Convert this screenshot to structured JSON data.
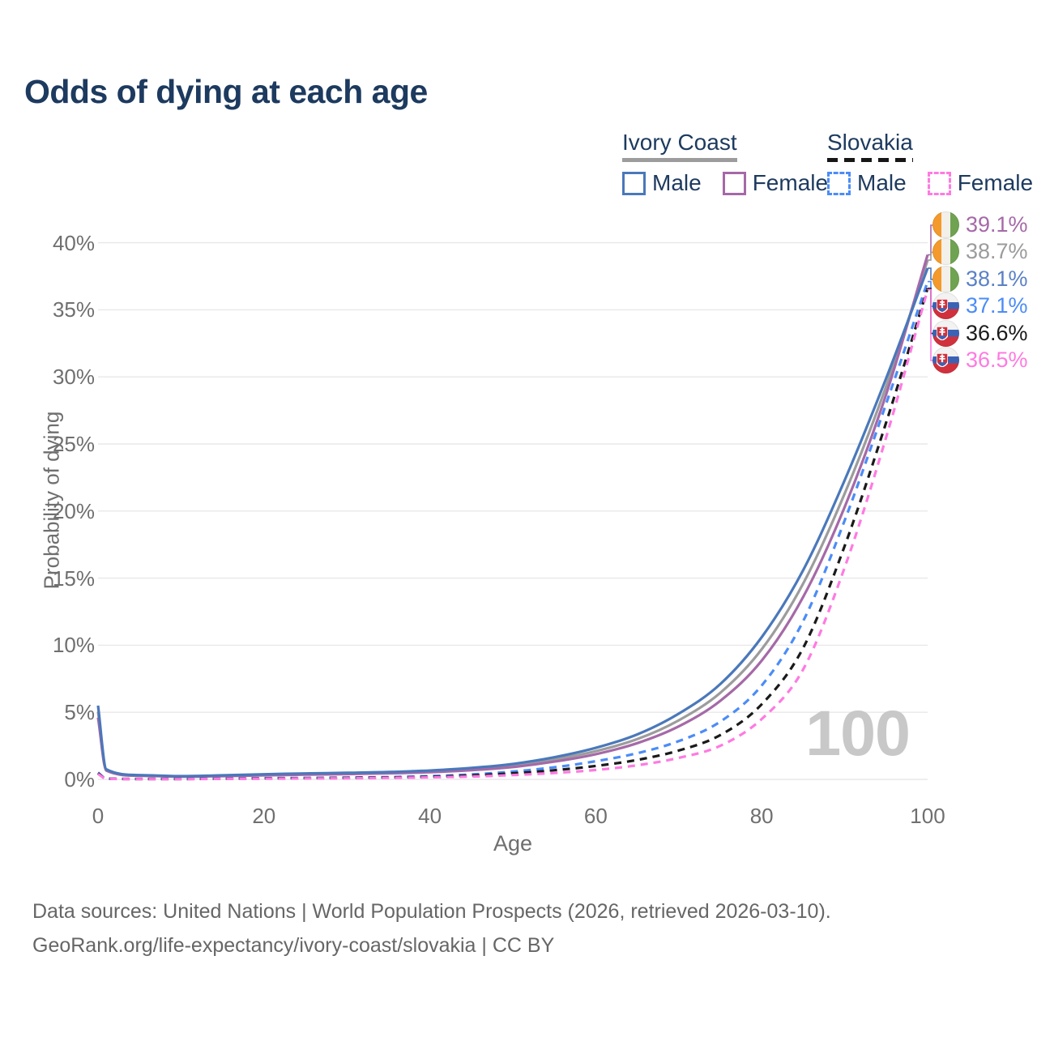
{
  "header": {
    "title": "Odds of dying at each age"
  },
  "legend": {
    "groups": [
      {
        "name": "Ivory Coast",
        "line_style": "solid",
        "underline_color": "#9c9c9c",
        "items": [
          {
            "label": "Male",
            "color": "#4a78ba",
            "dashed": false
          },
          {
            "label": "Female",
            "color": "#a569a8",
            "dashed": false
          }
        ]
      },
      {
        "name": "Slovakia",
        "line_style": "dashed",
        "underline_color": "#161616",
        "items": [
          {
            "label": "Male",
            "color": "#4b8cf7",
            "dashed": true
          },
          {
            "label": "Female",
            "color": "#ff7ae1",
            "dashed": true
          }
        ]
      }
    ]
  },
  "chart_data": {
    "type": "line",
    "title": "Odds of dying at each age",
    "xlabel": "Age",
    "ylabel": "Probability of dying",
    "xlim": [
      0,
      100
    ],
    "ylim": [
      0,
      40
    ],
    "grid": "horizontal",
    "xticks": [
      0,
      20,
      40,
      60,
      80,
      100
    ],
    "yticks": [
      {
        "label": "0%",
        "value": 0
      },
      {
        "label": "5%",
        "value": 5
      },
      {
        "label": "10%",
        "value": 10
      },
      {
        "label": "15%",
        "value": 15
      },
      {
        "label": "20%",
        "value": 20
      },
      {
        "label": "25%",
        "value": 25
      },
      {
        "label": "30%",
        "value": 30
      },
      {
        "label": "35%",
        "value": 35
      },
      {
        "label": "40%",
        "value": 40
      }
    ],
    "age_indicator": "100",
    "ages": [
      0,
      1,
      5,
      10,
      15,
      20,
      25,
      30,
      35,
      40,
      45,
      50,
      55,
      60,
      65,
      70,
      75,
      80,
      85,
      90,
      95,
      100
    ],
    "series": [
      {
        "name": "Ivory Coast Both sexes",
        "country": "Ivory Coast",
        "sex": "Both",
        "color": "#9c9c9c",
        "dashed": false,
        "flag": "civ",
        "end_label": "38.7%",
        "end_label_color": "#9b9b9b",
        "values": [
          5.05,
          0.7,
          0.29,
          0.22,
          0.27,
          0.34,
          0.39,
          0.44,
          0.5,
          0.59,
          0.76,
          1.03,
          1.48,
          2.1,
          3.0,
          4.4,
          6.45,
          9.7,
          14.6,
          21.3,
          29.3,
          38.7
        ]
      },
      {
        "name": "Ivory Coast Female",
        "country": "Ivory Coast",
        "sex": "Female",
        "color": "#a569a8",
        "dashed": false,
        "flag": "civ",
        "end_label": "39.1%",
        "end_label_color": "#a569a8",
        "values": [
          4.6,
          0.65,
          0.27,
          0.2,
          0.24,
          0.3,
          0.35,
          0.39,
          0.45,
          0.53,
          0.68,
          0.92,
          1.32,
          1.88,
          2.7,
          3.95,
          5.85,
          8.85,
          13.6,
          20.3,
          28.7,
          39.1
        ]
      },
      {
        "name": "Ivory Coast Male",
        "country": "Ivory Coast",
        "sex": "Male",
        "color": "#4a78ba",
        "dashed": false,
        "flag": "civ",
        "end_label": "38.1%",
        "end_label_color": "#5b80c6",
        "values": [
          5.5,
          0.75,
          0.32,
          0.24,
          0.3,
          0.38,
          0.44,
          0.49,
          0.55,
          0.66,
          0.85,
          1.15,
          1.65,
          2.35,
          3.35,
          4.9,
          7.1,
          10.6,
          15.6,
          22.3,
          29.9,
          38.1
        ]
      },
      {
        "name": "Slovakia Male",
        "country": "Slovakia",
        "sex": "Male",
        "color": "#4b8cf7",
        "dashed": true,
        "flag": "svk",
        "end_label": "37.1%",
        "end_label_color": "#4b8cf7",
        "values": [
          0.5,
          0.06,
          0.03,
          0.03,
          0.06,
          0.09,
          0.11,
          0.13,
          0.17,
          0.24,
          0.37,
          0.58,
          0.9,
          1.35,
          1.95,
          2.85,
          4.3,
          7.0,
          11.8,
          19.3,
          28.0,
          37.1
        ]
      },
      {
        "name": "Slovakia Both sexes",
        "country": "Slovakia",
        "sex": "Both",
        "color": "#1a1a1a",
        "dashed": true,
        "flag": "svk",
        "end_label": "36.6%",
        "end_label_color": "#1a1a1a",
        "values": [
          0.45,
          0.05,
          0.03,
          0.03,
          0.05,
          0.07,
          0.09,
          0.11,
          0.14,
          0.19,
          0.29,
          0.45,
          0.68,
          1.0,
          1.45,
          2.15,
          3.3,
          5.6,
          9.8,
          17.4,
          26.6,
          36.6
        ]
      },
      {
        "name": "Slovakia Female",
        "country": "Slovakia",
        "sex": "Female",
        "color": "#ff7ae1",
        "dashed": true,
        "flag": "svk",
        "end_label": "36.5%",
        "end_label_color": "#ff7ae1",
        "values": [
          0.4,
          0.05,
          0.02,
          0.02,
          0.04,
          0.05,
          0.07,
          0.08,
          0.11,
          0.15,
          0.21,
          0.32,
          0.48,
          0.7,
          1.05,
          1.6,
          2.5,
          4.5,
          8.2,
          15.8,
          25.5,
          36.5
        ]
      }
    ]
  },
  "footer": {
    "line1": "Data sources: United Nations | World Population Prospects (2026, retrieved 2026-03-10).",
    "line2": "GeoRank.org/life-expectancy/ivory-coast/slovakia | CC BY"
  }
}
